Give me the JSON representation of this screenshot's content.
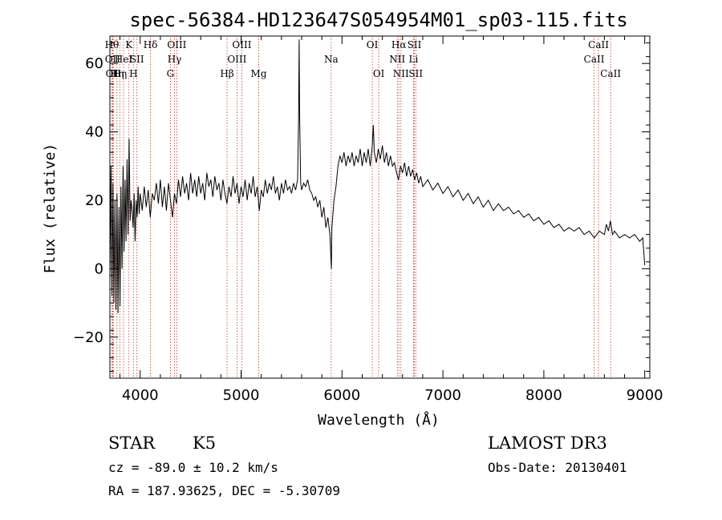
{
  "chart_data": {
    "type": "line",
    "title": "spec-56384-HD123647S054954M01_sp03-115.fits",
    "xlabel": "Wavelength (Å)",
    "ylabel": "Flux (relative)",
    "xlim": [
      3700,
      9050
    ],
    "ylim": [
      -32,
      68
    ],
    "x_ticks": [
      4000,
      5000,
      6000,
      7000,
      8000,
      9000
    ],
    "y_ticks": [
      -20,
      0,
      20,
      40,
      60
    ],
    "series": [
      {
        "name": "flux",
        "points": [
          [
            3700,
            -5
          ],
          [
            3710,
            30
          ],
          [
            3720,
            -8
          ],
          [
            3730,
            25
          ],
          [
            3740,
            -10
          ],
          [
            3750,
            20
          ],
          [
            3760,
            -12
          ],
          [
            3770,
            22
          ],
          [
            3780,
            -13
          ],
          [
            3790,
            18
          ],
          [
            3800,
            -11
          ],
          [
            3810,
            24
          ],
          [
            3820,
            0
          ],
          [
            3830,
            30
          ],
          [
            3840,
            5
          ],
          [
            3850,
            26
          ],
          [
            3860,
            8
          ],
          [
            3870,
            32
          ],
          [
            3880,
            10
          ],
          [
            3890,
            38
          ],
          [
            3900,
            14
          ],
          [
            3910,
            20
          ],
          [
            3920,
            17
          ],
          [
            3930,
            12
          ],
          [
            3940,
            22
          ],
          [
            3950,
            8
          ],
          [
            3960,
            20
          ],
          [
            3970,
            15
          ],
          [
            3980,
            24
          ],
          [
            3990,
            16
          ],
          [
            4000,
            22
          ],
          [
            4020,
            17
          ],
          [
            4040,
            24
          ],
          [
            4060,
            18
          ],
          [
            4080,
            23
          ],
          [
            4100,
            15
          ],
          [
            4120,
            22
          ],
          [
            4140,
            20
          ],
          [
            4160,
            25
          ],
          [
            4180,
            19
          ],
          [
            4200,
            26
          ],
          [
            4220,
            18
          ],
          [
            4240,
            24
          ],
          [
            4260,
            17
          ],
          [
            4280,
            25
          ],
          [
            4300,
            20
          ],
          [
            4320,
            15
          ],
          [
            4340,
            22
          ],
          [
            4360,
            19
          ],
          [
            4380,
            26
          ],
          [
            4400,
            21
          ],
          [
            4420,
            27
          ],
          [
            4440,
            22
          ],
          [
            4460,
            25
          ],
          [
            4480,
            20
          ],
          [
            4500,
            28
          ],
          [
            4520,
            22
          ],
          [
            4540,
            26
          ],
          [
            4560,
            21
          ],
          [
            4580,
            27
          ],
          [
            4600,
            22
          ],
          [
            4620,
            25
          ],
          [
            4640,
            20
          ],
          [
            4660,
            28
          ],
          [
            4680,
            24
          ],
          [
            4700,
            26
          ],
          [
            4720,
            21
          ],
          [
            4740,
            27
          ],
          [
            4760,
            23
          ],
          [
            4780,
            25
          ],
          [
            4800,
            20
          ],
          [
            4820,
            26
          ],
          [
            4840,
            22
          ],
          [
            4860,
            19
          ],
          [
            4880,
            24
          ],
          [
            4900,
            21
          ],
          [
            4920,
            27
          ],
          [
            4940,
            22
          ],
          [
            4960,
            25
          ],
          [
            4980,
            19
          ],
          [
            5000,
            24
          ],
          [
            5020,
            21
          ],
          [
            5040,
            26
          ],
          [
            5060,
            20
          ],
          [
            5080,
            25
          ],
          [
            5100,
            22
          ],
          [
            5120,
            27
          ],
          [
            5140,
            21
          ],
          [
            5160,
            24
          ],
          [
            5180,
            17
          ],
          [
            5200,
            23
          ],
          [
            5220,
            21
          ],
          [
            5240,
            26
          ],
          [
            5260,
            22
          ],
          [
            5280,
            25
          ],
          [
            5300,
            23
          ],
          [
            5320,
            27
          ],
          [
            5340,
            22
          ],
          [
            5360,
            24
          ],
          [
            5380,
            20
          ],
          [
            5400,
            25
          ],
          [
            5420,
            22
          ],
          [
            5440,
            26
          ],
          [
            5460,
            23
          ],
          [
            5480,
            24
          ],
          [
            5500,
            22
          ],
          [
            5520,
            25
          ],
          [
            5540,
            23
          ],
          [
            5560,
            26
          ],
          [
            5570,
            44
          ],
          [
            5575,
            67
          ],
          [
            5580,
            45
          ],
          [
            5590,
            25
          ],
          [
            5600,
            23
          ],
          [
            5620,
            25
          ],
          [
            5640,
            24
          ],
          [
            5660,
            26
          ],
          [
            5680,
            23
          ],
          [
            5700,
            22
          ],
          [
            5720,
            20
          ],
          [
            5740,
            21
          ],
          [
            5760,
            18
          ],
          [
            5780,
            20
          ],
          [
            5800,
            15
          ],
          [
            5820,
            18
          ],
          [
            5840,
            12
          ],
          [
            5860,
            15
          ],
          [
            5880,
            10
          ],
          [
            5890,
            3
          ],
          [
            5895,
            0
          ],
          [
            5900,
            12
          ],
          [
            5920,
            20
          ],
          [
            5940,
            24
          ],
          [
            5960,
            30
          ],
          [
            5980,
            33
          ],
          [
            6000,
            31
          ],
          [
            6020,
            34
          ],
          [
            6040,
            30
          ],
          [
            6060,
            33
          ],
          [
            6080,
            31
          ],
          [
            6100,
            34
          ],
          [
            6120,
            30
          ],
          [
            6140,
            33
          ],
          [
            6160,
            31
          ],
          [
            6180,
            35
          ],
          [
            6200,
            30
          ],
          [
            6220,
            34
          ],
          [
            6240,
            31
          ],
          [
            6260,
            35
          ],
          [
            6280,
            30
          ],
          [
            6300,
            36
          ],
          [
            6310,
            42
          ],
          [
            6320,
            34
          ],
          [
            6340,
            31
          ],
          [
            6360,
            35
          ],
          [
            6380,
            32
          ],
          [
            6400,
            36
          ],
          [
            6420,
            31
          ],
          [
            6440,
            34
          ],
          [
            6460,
            30
          ],
          [
            6480,
            33
          ],
          [
            6500,
            30
          ],
          [
            6520,
            31
          ],
          [
            6540,
            28
          ],
          [
            6560,
            26
          ],
          [
            6580,
            30
          ],
          [
            6600,
            28
          ],
          [
            6620,
            31
          ],
          [
            6640,
            27
          ],
          [
            6660,
            30
          ],
          [
            6680,
            27
          ],
          [
            6700,
            29
          ],
          [
            6720,
            26
          ],
          [
            6740,
            28
          ],
          [
            6760,
            25
          ],
          [
            6780,
            27
          ],
          [
            6800,
            24
          ],
          [
            6850,
            26
          ],
          [
            6900,
            23
          ],
          [
            6950,
            25
          ],
          [
            7000,
            22
          ],
          [
            7050,
            24
          ],
          [
            7100,
            21
          ],
          [
            7150,
            23
          ],
          [
            7200,
            20
          ],
          [
            7250,
            22
          ],
          [
            7300,
            19
          ],
          [
            7350,
            21
          ],
          [
            7400,
            18
          ],
          [
            7450,
            20
          ],
          [
            7500,
            17
          ],
          [
            7550,
            19
          ],
          [
            7600,
            17
          ],
          [
            7650,
            18
          ],
          [
            7700,
            16
          ],
          [
            7750,
            17
          ],
          [
            7800,
            15
          ],
          [
            7850,
            16
          ],
          [
            7900,
            14
          ],
          [
            7950,
            15
          ],
          [
            8000,
            13
          ],
          [
            8050,
            14
          ],
          [
            8100,
            12
          ],
          [
            8150,
            13
          ],
          [
            8200,
            11
          ],
          [
            8250,
            12
          ],
          [
            8300,
            11
          ],
          [
            8350,
            12
          ],
          [
            8400,
            10
          ],
          [
            8450,
            11
          ],
          [
            8500,
            9
          ],
          [
            8550,
            11
          ],
          [
            8600,
            10
          ],
          [
            8620,
            13
          ],
          [
            8640,
            11
          ],
          [
            8660,
            14
          ],
          [
            8680,
            10
          ],
          [
            8700,
            11
          ],
          [
            8750,
            9
          ],
          [
            8800,
            10
          ],
          [
            8850,
            9
          ],
          [
            8900,
            10
          ],
          [
            8950,
            8
          ],
          [
            8980,
            9
          ],
          [
            9000,
            1
          ]
        ]
      }
    ],
    "lines": [
      {
        "x": 3720,
        "label": "Hθ",
        "row": 0
      },
      {
        "x": 3727,
        "label": "OII",
        "row": 1
      },
      {
        "x": 3734,
        "label": "OII",
        "row": 2
      },
      {
        "x": 3770,
        "label": "Hη",
        "row": 2
      },
      {
        "x": 3798,
        "label": "Hη",
        "row": 2
      },
      {
        "x": 3835,
        "label": "HeI",
        "row": 1
      },
      {
        "x": 3889,
        "label": "K",
        "row": 0
      },
      {
        "x": 3933,
        "label": "H",
        "row": 2
      },
      {
        "x": 3968,
        "label": "SII",
        "row": 1
      },
      {
        "x": 4102,
        "label": "Hδ",
        "row": 0
      },
      {
        "x": 4300,
        "label": "G",
        "row": 2
      },
      {
        "x": 4340,
        "label": "Hγ",
        "row": 1
      },
      {
        "x": 4363,
        "label": "OIII",
        "row": 0
      },
      {
        "x": 4861,
        "label": "Hβ",
        "row": 2
      },
      {
        "x": 4959,
        "label": "OIII",
        "row": 1
      },
      {
        "x": 5007,
        "label": "OIII",
        "row": 0
      },
      {
        "x": 5175,
        "label": "Mg",
        "row": 2
      },
      {
        "x": 5893,
        "label": "Na",
        "row": 1
      },
      {
        "x": 6300,
        "label": "OI",
        "row": 0
      },
      {
        "x": 6364,
        "label": "OI",
        "row": 2
      },
      {
        "x": 6548,
        "label": "NII",
        "row": 1
      },
      {
        "x": 6563,
        "label": "Hα",
        "row": 0
      },
      {
        "x": 6584,
        "label": "NII",
        "row": 2
      },
      {
        "x": 6708,
        "label": "Li",
        "row": 1
      },
      {
        "x": 6717,
        "label": "SII",
        "row": 0
      },
      {
        "x": 6731,
        "label": "SII",
        "row": 2
      },
      {
        "x": 8498,
        "label": "CaII",
        "row": 1
      },
      {
        "x": 8542,
        "label": "CaII",
        "row": 0
      },
      {
        "x": 8662,
        "label": "CaII",
        "row": 2
      }
    ]
  },
  "info": {
    "class": "STAR",
    "subclass": "K5",
    "survey": "LAMOST DR3",
    "cz": "cz = -89.0 ± 10.2 km/s",
    "obs_date": "Obs-Date: 20130401",
    "coords": "RA = 187.93625, DEC =  -5.30709"
  },
  "colors": {
    "line_marker": "#c0392b",
    "spectrum": "#000000"
  }
}
